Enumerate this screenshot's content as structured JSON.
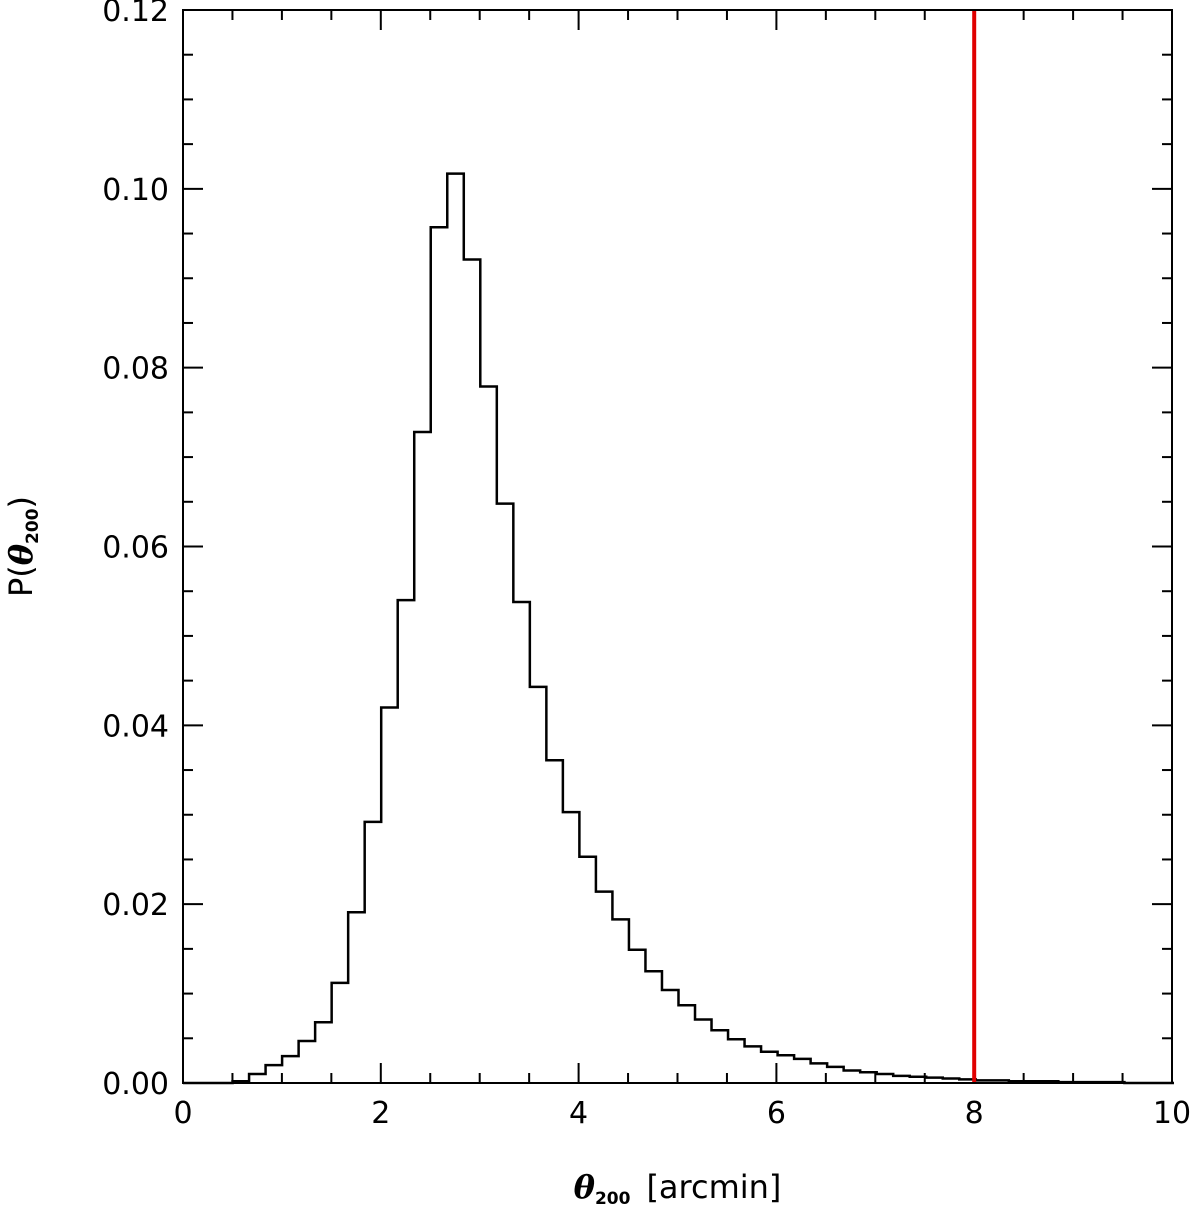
{
  "chart_data": {
    "type": "histogram",
    "title": "",
    "xlabel": {
      "symbol": "θ",
      "subscript": "200",
      "unit": "[arcmin]"
    },
    "ylabel": {
      "prefix": "P(",
      "symbol": "θ",
      "subscript": "200",
      "suffix": ")"
    },
    "xlim": [
      0,
      10
    ],
    "ylim": [
      0,
      0.12
    ],
    "xticks": [
      0,
      2,
      4,
      6,
      8,
      10
    ],
    "xtick_labels": [
      "0",
      "2",
      "4",
      "6",
      "8",
      "10"
    ],
    "yticks": [
      0,
      0.02,
      0.04,
      0.06,
      0.08,
      0.1,
      0.12
    ],
    "ytick_labels": [
      "0.00",
      "0.02",
      "0.04",
      "0.06",
      "0.08",
      "0.10",
      "0.12"
    ],
    "bin_width": 0.167,
    "bin_start": 0.0,
    "values": [
      0.0,
      0.0,
      0.0,
      0.0002,
      0.001,
      0.002,
      0.003,
      0.0047,
      0.0068,
      0.0112,
      0.0191,
      0.0292,
      0.042,
      0.054,
      0.0728,
      0.0957,
      0.1017,
      0.0921,
      0.0779,
      0.0648,
      0.0538,
      0.0443,
      0.0361,
      0.0303,
      0.0253,
      0.0214,
      0.0183,
      0.0149,
      0.0125,
      0.0104,
      0.0087,
      0.0071,
      0.0059,
      0.0049,
      0.0041,
      0.0035,
      0.0031,
      0.0027,
      0.0022,
      0.0018,
      0.0014,
      0.0012,
      0.001,
      0.0008,
      0.0007,
      0.0006,
      0.0005,
      0.0004,
      0.0003,
      0.0003,
      0.0002,
      0.0002,
      0.0002,
      0.0001,
      0.0001,
      0.0001,
      0.0001,
      0.0,
      0.0,
      0.0
    ],
    "line_color": "#000000",
    "vline": {
      "x": 8.0,
      "color": "#e00000"
    },
    "grid": false,
    "legend": "none"
  }
}
